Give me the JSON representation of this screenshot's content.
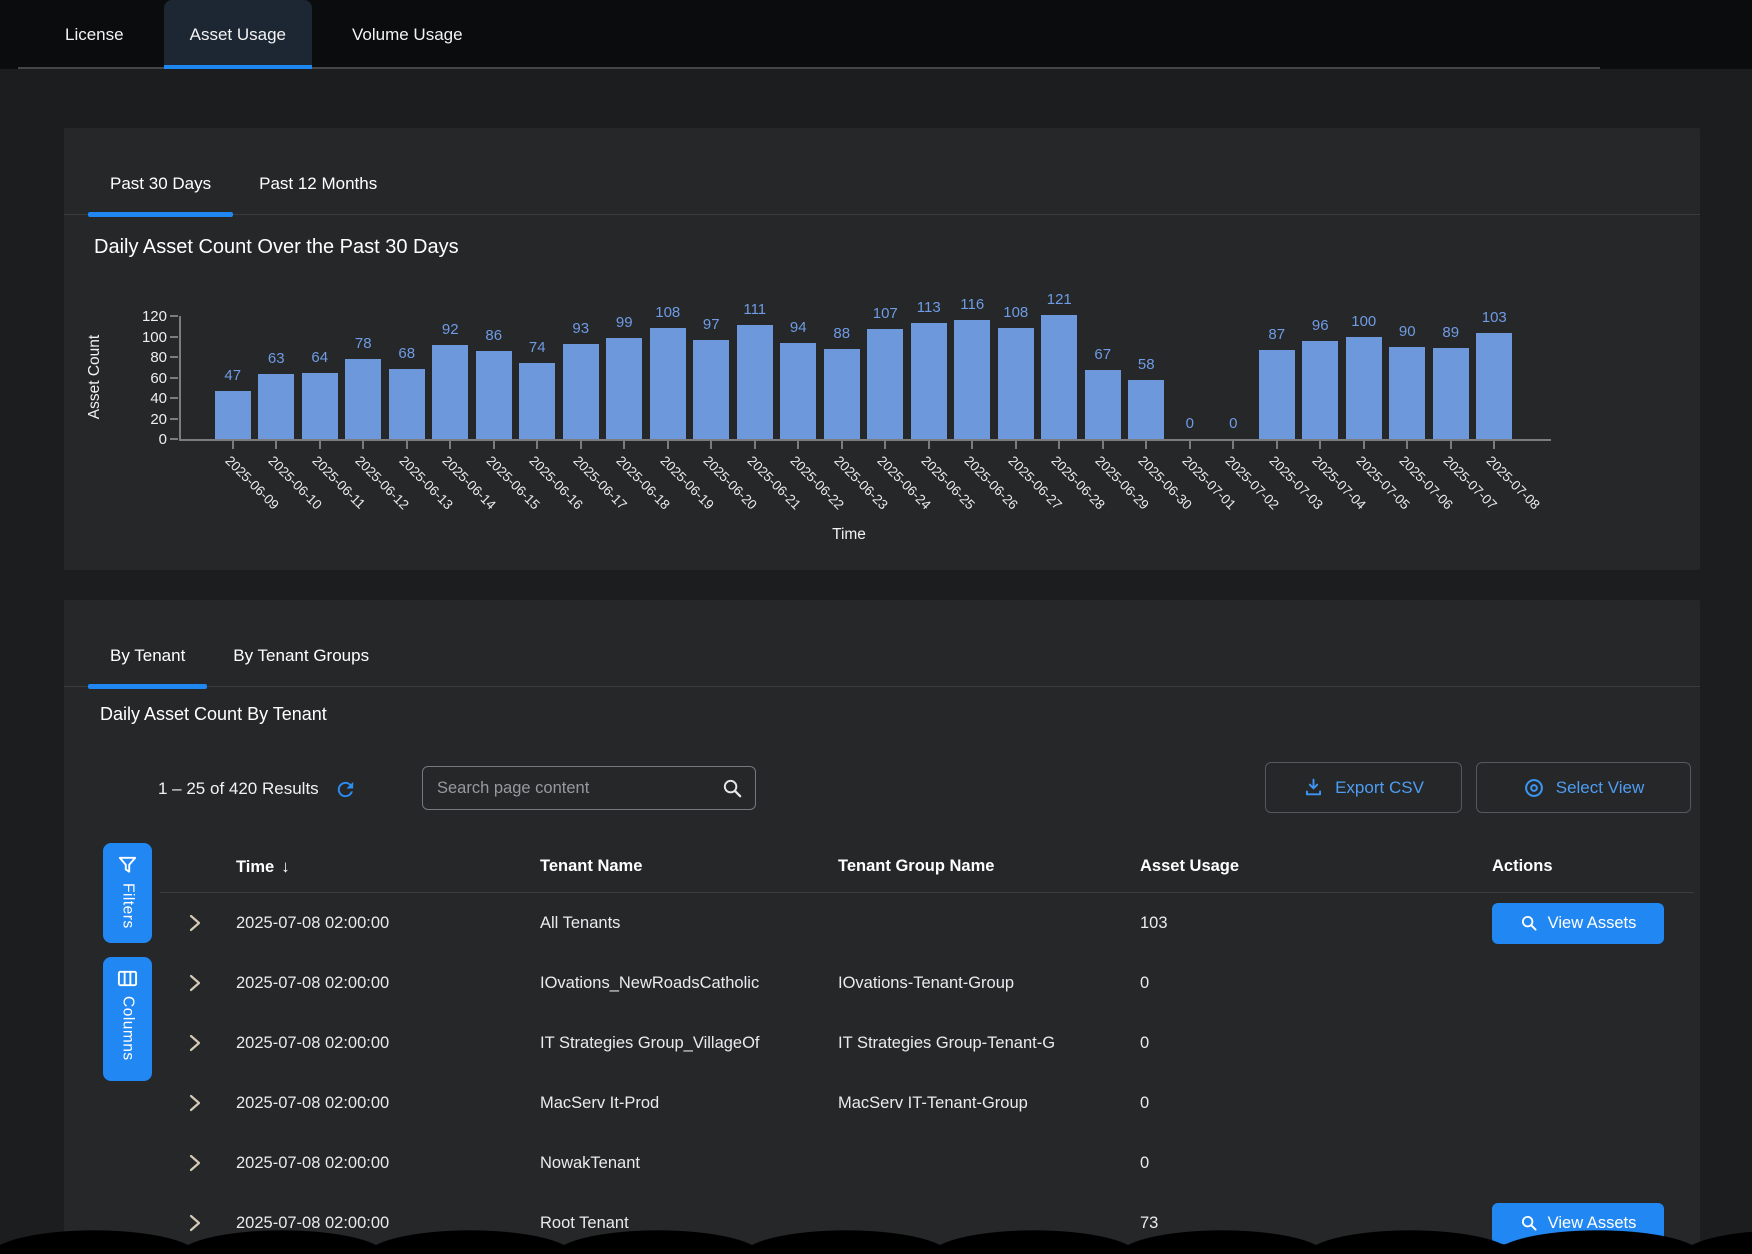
{
  "colors": {
    "accent_blue": "#1e87f0",
    "button_blue": "#2187f2",
    "bar_blue": "#6d99dc",
    "bar_label_blue": "#6f9ce4",
    "chevron_tan": "#d5cab6",
    "card_bg": "#252729",
    "page_bg": "#1c1d1f"
  },
  "top_tabs": [
    {
      "label": "License",
      "active": false
    },
    {
      "label": "Asset Usage",
      "active": true
    },
    {
      "label": "Volume Usage",
      "active": false
    }
  ],
  "chart_card": {
    "tabs": [
      {
        "label": "Past 30 Days",
        "active": true
      },
      {
        "label": "Past 12 Months",
        "active": false
      }
    ]
  },
  "chart_data": {
    "type": "bar",
    "title": "Daily Asset Count Over the Past 30 Days",
    "xlabel": "Time",
    "ylabel": "Asset Count",
    "ylim": [
      0,
      120
    ],
    "yticks": [
      0,
      20,
      40,
      60,
      80,
      100,
      120
    ],
    "grid": false,
    "bar_color": "#6d99dc",
    "categories": [
      "2025-06-09",
      "2025-06-10",
      "2025-06-11",
      "2025-06-12",
      "2025-06-13",
      "2025-06-14",
      "2025-06-15",
      "2025-06-16",
      "2025-06-17",
      "2025-06-18",
      "2025-06-19",
      "2025-06-20",
      "2025-06-21",
      "2025-06-22",
      "2025-06-23",
      "2025-06-24",
      "2025-06-25",
      "2025-06-26",
      "2025-06-27",
      "2025-06-28",
      "2025-06-29",
      "2025-06-30",
      "2025-07-01",
      "2025-07-02",
      "2025-07-03",
      "2025-07-04",
      "2025-07-05",
      "2025-07-06",
      "2025-07-07",
      "2025-07-08"
    ],
    "values": [
      47,
      63,
      64,
      78,
      68,
      92,
      86,
      74,
      93,
      99,
      108,
      97,
      111,
      94,
      88,
      107,
      113,
      116,
      108,
      121,
      67,
      58,
      0,
      0,
      87,
      96,
      100,
      90,
      89,
      103
    ]
  },
  "table_card": {
    "tabs": [
      {
        "label": "By Tenant",
        "active": true
      },
      {
        "label": "By Tenant Groups",
        "active": false
      }
    ],
    "title": "Daily Asset Count By Tenant",
    "results_text": "1 – 25 of 420 Results",
    "search_placeholder": "Search page content",
    "export_label": "Export CSV",
    "select_view_label": "Select View",
    "side_buttons": {
      "filters": "Filters",
      "columns": "Columns"
    },
    "sort_indicator": "↓",
    "columns": [
      "Time",
      "Tenant Name",
      "Tenant Group Name",
      "Asset Usage",
      "Actions"
    ],
    "rows": [
      {
        "time": "2025-07-08 02:00:00",
        "tenant": "All Tenants",
        "group": "",
        "usage": "103",
        "action": "View Assets"
      },
      {
        "time": "2025-07-08 02:00:00",
        "tenant": "IOvations_NewRoadsCatholic",
        "group": "IOvations-Tenant-Group",
        "usage": "0",
        "action": null
      },
      {
        "time": "2025-07-08 02:00:00",
        "tenant": "IT Strategies Group_VillageOf",
        "group": "IT Strategies Group-Tenant-G",
        "usage": "0",
        "action": null
      },
      {
        "time": "2025-07-08 02:00:00",
        "tenant": "MacServ It-Prod",
        "group": "MacServ IT-Tenant-Group",
        "usage": "0",
        "action": null
      },
      {
        "time": "2025-07-08 02:00:00",
        "tenant": "NowakTenant",
        "group": "",
        "usage": "0",
        "action": null
      },
      {
        "time": "2025-07-08 02:00:00",
        "tenant": "Root Tenant",
        "group": "",
        "usage": "73",
        "action": "View Assets"
      }
    ]
  }
}
